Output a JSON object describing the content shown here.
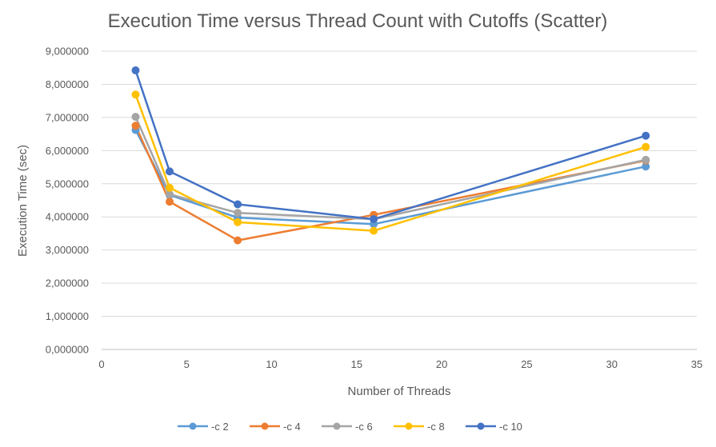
{
  "chart_data": {
    "type": "scatter",
    "title": "Execution Time versus Thread Count with Cutoffs (Scatter)",
    "xlabel": "Number of Threads",
    "ylabel": "Execution Time (sec)",
    "xlim": [
      0,
      35
    ],
    "ylim": [
      0,
      9
    ],
    "x_ticks": [
      0,
      5,
      10,
      15,
      20,
      25,
      30,
      35
    ],
    "y_ticks": [
      0,
      1,
      2,
      3,
      4,
      5,
      6,
      7,
      8,
      9
    ],
    "x_tick_labels": [
      "0",
      "5",
      "10",
      "15",
      "20",
      "25",
      "30",
      "35"
    ],
    "y_tick_labels": [
      "0,000000",
      "1,000000",
      "2,000000",
      "3,000000",
      "4,000000",
      "5,000000",
      "6,000000",
      "7,000000",
      "8,000000",
      "9,000000"
    ],
    "x": [
      2,
      4,
      8,
      16,
      32
    ],
    "grid": "horizontal",
    "legend_position": "bottom",
    "series": [
      {
        "name": "-c 2",
        "color": "#5B9BD5",
        "values": [
          6.62,
          4.66,
          3.98,
          3.78,
          5.52
        ]
      },
      {
        "name": "-c 4",
        "color": "#ED7D31",
        "values": [
          6.75,
          4.46,
          3.29,
          4.06,
          5.7
        ]
      },
      {
        "name": "-c 6",
        "color": "#A5A5A5",
        "values": [
          7.02,
          4.68,
          4.12,
          3.93,
          5.72
        ]
      },
      {
        "name": "-c 8",
        "color": "#FFC000",
        "values": [
          7.69,
          4.88,
          3.84,
          3.58,
          6.11
        ]
      },
      {
        "name": "-c 10",
        "color": "#4472C4",
        "values": [
          8.42,
          5.37,
          4.38,
          3.93,
          6.45
        ]
      }
    ]
  }
}
